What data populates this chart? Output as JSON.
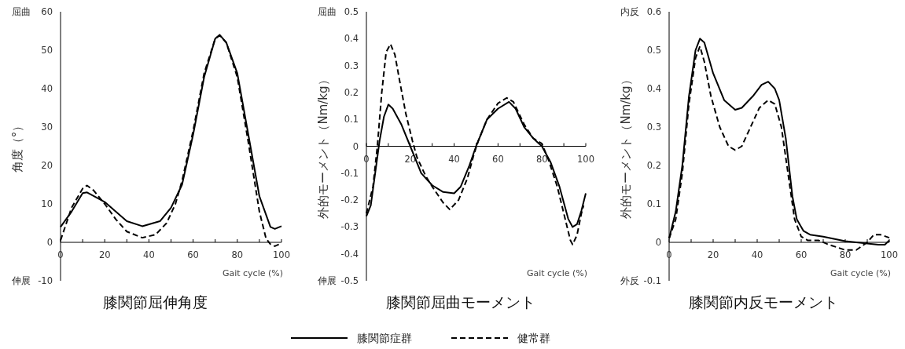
{
  "chart_data": [
    {
      "type": "line",
      "title": "膝関節屈伸角度",
      "xlabel": "Gait cycle (%)",
      "ylabel": "角度（°）",
      "annotations": [
        "屈曲",
        "伸展"
      ],
      "legend": "bottom",
      "xlim": [
        0,
        100
      ],
      "xticks": [
        0,
        20,
        40,
        60,
        80,
        100
      ],
      "ylim": [
        -10,
        60
      ],
      "yticks": [
        -10,
        0,
        10,
        20,
        30,
        40,
        50,
        60
      ],
      "series": [
        {
          "name": "膝関節症群",
          "color": "#000000",
          "line_style": "solid",
          "x": [
            0,
            5,
            10,
            12,
            20,
            30,
            37,
            45,
            50,
            55,
            60,
            65,
            70,
            72,
            75,
            80,
            85,
            90,
            95,
            97,
            100
          ],
          "values": [
            4,
            8,
            12.8,
            13,
            10.5,
            5.5,
            4.2,
            5.5,
            9,
            15,
            28,
            43,
            53,
            54,
            52,
            44,
            28,
            12,
            4,
            3.5,
            4.2
          ]
        },
        {
          "name": "健常群",
          "color": "#000000",
          "line_style": "dashed",
          "x": [
            0,
            5,
            10,
            12,
            15,
            20,
            25,
            30,
            37,
            43,
            48,
            52,
            55,
            60,
            65,
            70,
            72,
            75,
            80,
            85,
            90,
            93,
            95,
            97,
            99
          ],
          "values": [
            0.5,
            9,
            14,
            14.8,
            13.5,
            10,
            6,
            2.8,
            1.2,
            2,
            5,
            10,
            16,
            29,
            44,
            53,
            53.8,
            52,
            43,
            26,
            8,
            1,
            -0.5,
            -1,
            -0.5
          ]
        }
      ]
    },
    {
      "type": "line",
      "title": "膝関節屈曲モーメント",
      "xlabel": "Gait cycle (%)",
      "ylabel": "外的モーメント（Nm/kg）",
      "annotations": [
        "屈曲",
        "伸展"
      ],
      "xlim": [
        0,
        100
      ],
      "xticks": [
        0,
        20,
        40,
        60,
        80,
        100
      ],
      "ylim": [
        -0.5,
        0.5
      ],
      "yticks": [
        -0.5,
        -0.4,
        -0.3,
        -0.2,
        -0.1,
        0,
        0.1,
        0.2,
        0.3,
        0.4,
        0.5
      ],
      "series": [
        {
          "color": "#000000",
          "line_style": "solid",
          "x": [
            0,
            2,
            4,
            6,
            8,
            10,
            12,
            16,
            20,
            25,
            30,
            35,
            40,
            43,
            47,
            50,
            55,
            60,
            65,
            68,
            72,
            76,
            80,
            84,
            88,
            92,
            94,
            96,
            98,
            100
          ],
          "values": [
            -0.26,
            -0.22,
            -0.1,
            0.02,
            0.11,
            0.155,
            0.14,
            0.08,
            0.0,
            -0.1,
            -0.145,
            -0.17,
            -0.175,
            -0.15,
            -0.07,
            0,
            0.1,
            0.14,
            0.165,
            0.14,
            0.07,
            0.03,
            0.0,
            -0.06,
            -0.15,
            -0.27,
            -0.3,
            -0.29,
            -0.24,
            -0.175
          ]
        },
        {
          "color": "#000000",
          "line_style": "dashed",
          "x": [
            0,
            3,
            5,
            7,
            9,
            11,
            13,
            15,
            18,
            21,
            23,
            27,
            30,
            35,
            38,
            42,
            46,
            49,
            51,
            55,
            60,
            64,
            67,
            72,
            76,
            80,
            83,
            87,
            90,
            93,
            94,
            96,
            98,
            99
          ],
          "values": [
            -0.25,
            -0.15,
            0.0,
            0.2,
            0.35,
            0.38,
            0.34,
            0.25,
            0.12,
            0.02,
            -0.04,
            -0.11,
            -0.15,
            -0.21,
            -0.235,
            -0.2,
            -0.12,
            -0.03,
            0.02,
            0.1,
            0.16,
            0.18,
            0.165,
            0.08,
            0.03,
            0.01,
            -0.05,
            -0.15,
            -0.25,
            -0.35,
            -0.365,
            -0.33,
            -0.25,
            -0.22
          ]
        }
      ]
    },
    {
      "type": "line",
      "title": "膝関節内反モーメント",
      "xlabel": "Gait cycle (%)",
      "ylabel": "外的モーメント（Nm/kg）",
      "annotations": [
        "内反",
        "外反"
      ],
      "xlim": [
        0,
        100
      ],
      "xticks": [
        0,
        20,
        40,
        60,
        80,
        100
      ],
      "ylim": [
        -0.1,
        0.6
      ],
      "yticks": [
        -0.1,
        0,
        0.1,
        0.2,
        0.3,
        0.4,
        0.5,
        0.6
      ],
      "series": [
        {
          "color": "#000000",
          "line_style": "solid",
          "x": [
            0,
            3,
            6,
            9,
            12,
            14,
            16,
            20,
            25,
            30,
            33,
            38,
            42,
            45,
            48,
            50,
            53,
            56,
            58,
            61,
            64,
            70,
            80,
            90,
            95,
            98,
            100
          ],
          "values": [
            0.01,
            0.08,
            0.2,
            0.38,
            0.5,
            0.53,
            0.52,
            0.44,
            0.37,
            0.345,
            0.35,
            0.38,
            0.41,
            0.418,
            0.4,
            0.37,
            0.27,
            0.12,
            0.06,
            0.03,
            0.02,
            0.015,
            0.003,
            -0.003,
            -0.006,
            -0.006,
            0.005
          ]
        },
        {
          "color": "#000000",
          "line_style": "dashed",
          "x": [
            0,
            3,
            6,
            9,
            12,
            14,
            16,
            19,
            23,
            27,
            30,
            33,
            37,
            41,
            45,
            48,
            51,
            54,
            57,
            60,
            63,
            68,
            72,
            80,
            85,
            90,
            93,
            96,
            100
          ],
          "values": [
            0.01,
            0.06,
            0.18,
            0.36,
            0.48,
            0.51,
            0.47,
            0.38,
            0.3,
            0.25,
            0.24,
            0.25,
            0.3,
            0.35,
            0.37,
            0.36,
            0.3,
            0.18,
            0.06,
            0.015,
            0.005,
            0.005,
            -0.005,
            -0.02,
            -0.02,
            0.0,
            0.02,
            0.02,
            0.012
          ]
        }
      ]
    }
  ]
}
